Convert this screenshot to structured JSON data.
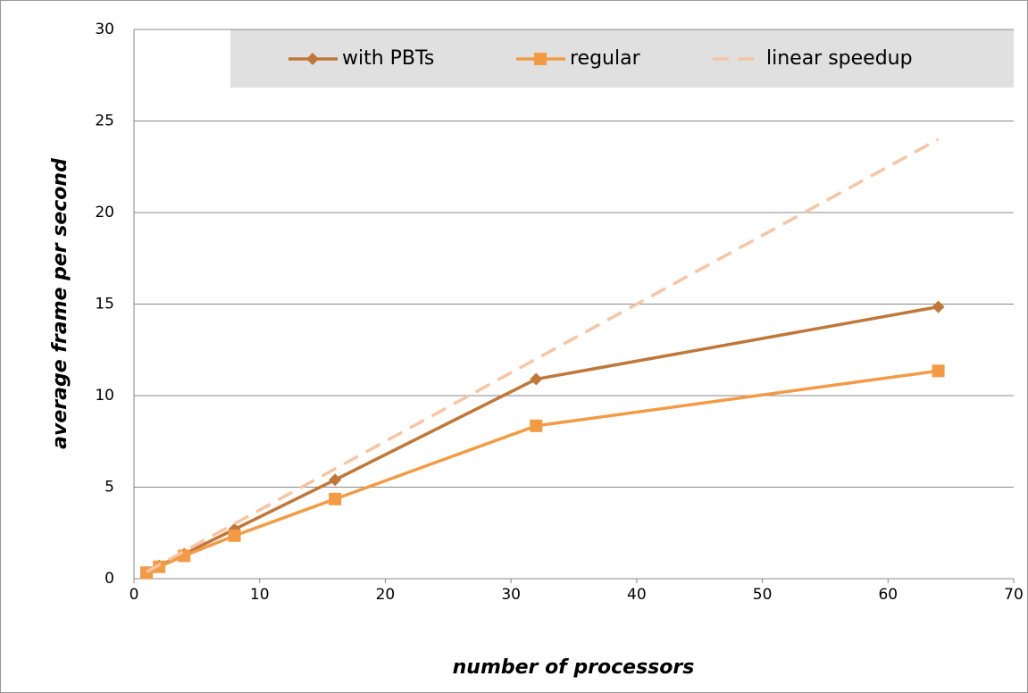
{
  "chart_data": {
    "type": "line",
    "x_label": "number of processors",
    "y_label": "average frame per second",
    "x": [
      1,
      2,
      4,
      8,
      16,
      32,
      64
    ],
    "series": [
      {
        "name": "with PBTs",
        "color": "#c0773a",
        "marker": "diamond",
        "dash": false,
        "values": [
          0.35,
          0.7,
          1.35,
          2.7,
          5.4,
          10.9,
          14.85
        ]
      },
      {
        "name": "regular",
        "color": "#f39a45",
        "marker": "square",
        "dash": false,
        "values": [
          0.33,
          0.65,
          1.25,
          2.35,
          4.35,
          8.35,
          11.35
        ]
      },
      {
        "name": "linear speedup",
        "color": "#f6c5a5",
        "marker": "none",
        "dash": true,
        "values": [
          0.375,
          0.75,
          1.5,
          3,
          6,
          12,
          24
        ]
      }
    ],
    "xlim": [
      0,
      70
    ],
    "xticks": [
      0,
      10,
      20,
      30,
      40,
      50,
      60,
      70
    ],
    "ylim": [
      0,
      30
    ],
    "yticks": [
      0,
      5,
      10,
      15,
      20,
      25,
      30
    ],
    "grid": true,
    "legend": "top"
  }
}
